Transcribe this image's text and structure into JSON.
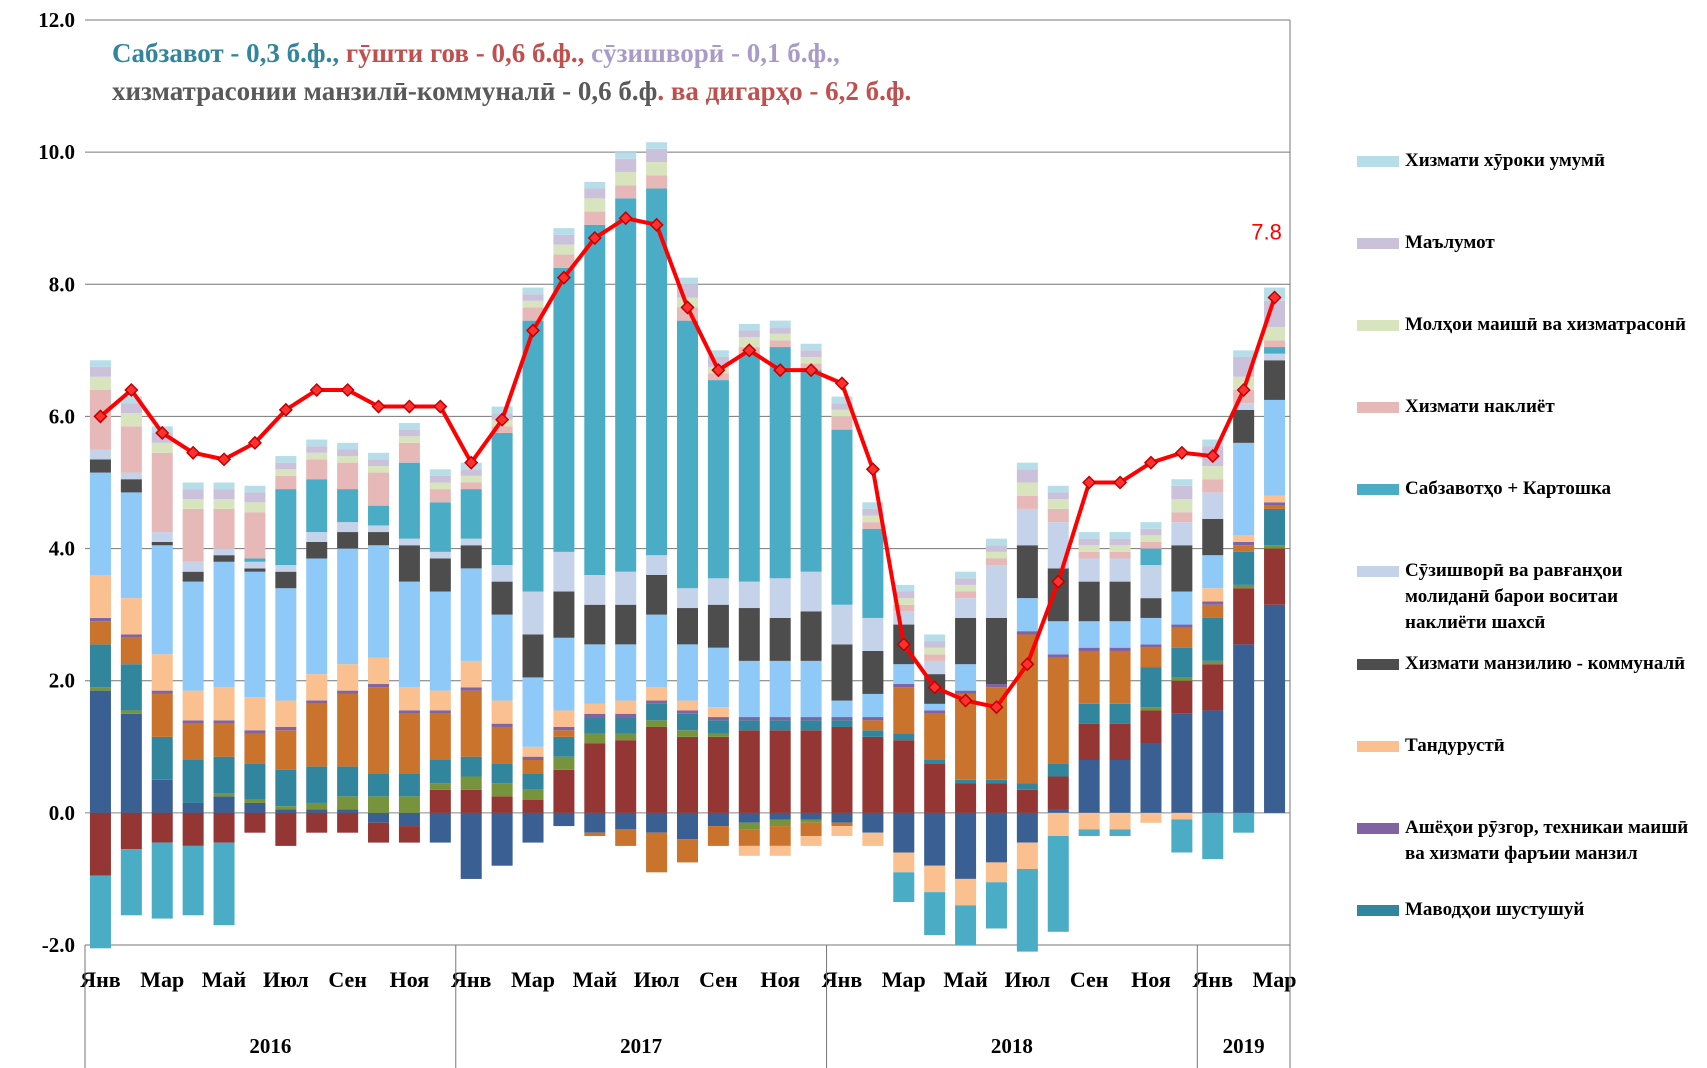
{
  "chart_data": {
    "type": "bar",
    "annotation": [
      {
        "text": "Сабзавот - 0,3 б.ф.,",
        "color": "#31859c"
      },
      {
        "text": " гӯшти гов - 0,6 б.ф.,",
        "color": "#c0504d"
      },
      {
        "text": " сӯзишворӣ - 0,1 б.ф.,",
        "color": "#a99bc8"
      },
      {
        "text": " хизматрасонии манзилӣ-коммуналӣ - 0,6 б.ф",
        "color": "#595959"
      },
      {
        "text": ". ва дигарҳо - 6,2 б.ф.",
        "color": "#c0504d"
      }
    ],
    "categories": [
      "Янв",
      null,
      "Мар",
      null,
      "Май",
      null,
      "Июл",
      null,
      "Сен",
      null,
      "Ноя",
      null,
      "Янв",
      null,
      "Мар",
      null,
      "Май",
      null,
      "Июл",
      null,
      "Сен",
      null,
      "Ноя",
      null,
      "Янв",
      null,
      "Мар",
      null,
      "Май",
      null,
      "Июл",
      null,
      "Сен",
      null,
      "Ноя",
      null,
      "Янв",
      null,
      "Мар"
    ],
    "year_groups": [
      {
        "label": "2016",
        "start": 0,
        "end": 11
      },
      {
        "label": "2017",
        "start": 12,
        "end": 23
      },
      {
        "label": "2018",
        "start": 24,
        "end": 35
      },
      {
        "label": "2019",
        "start": 36,
        "end": 38
      }
    ],
    "ylim": [
      -2,
      12
    ],
    "yticks": [
      {
        "value": -2,
        "label": "-2.0"
      },
      {
        "value": 0,
        "label": "0.0"
      },
      {
        "value": 2,
        "label": "2.0"
      },
      {
        "value": 4,
        "label": "4.0"
      },
      {
        "value": 6,
        "label": "6.0"
      },
      {
        "value": 8,
        "label": "8.0"
      },
      {
        "value": 10,
        "label": "10.0"
      },
      {
        "value": 12,
        "label": "12.0"
      }
    ],
    "grid": true,
    "series": [
      {
        "color": "#3a5f93",
        "values": [
          1.85,
          1.5,
          0.5,
          0.15,
          0.25,
          0.15,
          0.05,
          0.05,
          0.05,
          -0.15,
          -0.2,
          -0.45,
          -1.0,
          -0.8,
          -0.45,
          -0.2,
          -0.3,
          -0.25,
          -0.3,
          -0.4,
          -0.2,
          -0.15,
          -0.1,
          -0.1,
          -0.15,
          -0.3,
          -0.6,
          -0.8,
          -1.0,
          -0.75,
          -0.45,
          0.05,
          0.8,
          0.8,
          1.05,
          1.5,
          1.55,
          2.55,
          3.15
        ]
      },
      {
        "color": "#943634",
        "values": [
          -0.95,
          -0.55,
          -0.45,
          -0.5,
          -0.45,
          -0.3,
          -0.5,
          -0.3,
          -0.3,
          -0.3,
          -0.25,
          0.35,
          0.35,
          0.25,
          0.2,
          0.65,
          1.05,
          1.1,
          1.3,
          1.15,
          1.15,
          1.25,
          1.25,
          1.25,
          1.3,
          1.15,
          1.1,
          0.75,
          0.45,
          0.45,
          0.35,
          0.5,
          0.55,
          0.55,
          0.5,
          0.5,
          0.7,
          0.85,
          0.85
        ]
      },
      {
        "color": "#77933c",
        "values": [
          0.05,
          0.05,
          0,
          0,
          0.05,
          0.05,
          0.05,
          0.1,
          0.2,
          0.25,
          0.25,
          0.1,
          0.2,
          0.2,
          0.15,
          0.2,
          0.15,
          0.1,
          0.1,
          0.1,
          0.05,
          -0.1,
          -0.1,
          -0.05,
          0,
          0,
          0,
          0,
          0,
          0,
          0,
          0,
          0,
          0,
          0.05,
          0.05,
          0.05,
          0.05,
          0.05
        ]
      },
      {
        "color": "#31859c",
        "values": [
          0.65,
          0.7,
          0.65,
          0.65,
          0.55,
          0.55,
          0.55,
          0.55,
          0.45,
          0.35,
          0.35,
          0.35,
          0.3,
          0.3,
          0.25,
          0.3,
          0.25,
          0.25,
          0.25,
          0.25,
          0.2,
          0.15,
          0.15,
          0.15,
          0.1,
          0.1,
          0.1,
          0.05,
          0.05,
          0.05,
          0.1,
          0.2,
          0.3,
          0.3,
          0.6,
          0.45,
          0.65,
          0.5,
          0.55
        ],
        "name": "Маводҳои шустушуй"
      },
      {
        "color": "#c9732c",
        "values": [
          0.35,
          0.4,
          0.65,
          0.55,
          0.5,
          0.45,
          0.6,
          0.95,
          1.1,
          1.3,
          0.9,
          0.7,
          1.0,
          0.55,
          0.2,
          0.1,
          -0.05,
          -0.25,
          -0.6,
          -0.35,
          -0.3,
          -0.25,
          -0.3,
          -0.2,
          -0.05,
          0.15,
          0.7,
          0.7,
          1.3,
          1.4,
          2.25,
          1.6,
          0.8,
          0.8,
          0.3,
          0.3,
          0.2,
          0.1,
          0.05
        ]
      },
      {
        "color": "#8064a2",
        "values": [
          0.05,
          0.05,
          0.05,
          0.05,
          0.05,
          0.05,
          0.05,
          0.05,
          0.05,
          0.05,
          0.05,
          0.05,
          0.05,
          0.05,
          0.05,
          0.05,
          0.05,
          0.05,
          0.05,
          0.05,
          0.05,
          0.05,
          0.05,
          0.05,
          0.05,
          0.05,
          0.05,
          0.05,
          0.05,
          0.05,
          0.05,
          0.05,
          0.05,
          0.05,
          0.05,
          0.05,
          0.05,
          0.05,
          0.05
        ],
        "name": "Ашёҳои рӯзгор, техникаи маишӣ ва  хизмати фаръии манзил"
      },
      {
        "color": "#fac090",
        "values": [
          0.65,
          0.55,
          0.55,
          0.45,
          0.5,
          0.5,
          0.4,
          0.4,
          0.4,
          0.4,
          0.35,
          0.3,
          0.4,
          0.35,
          0.15,
          0.25,
          0.15,
          0.2,
          0.2,
          0.15,
          0.15,
          -0.15,
          -0.15,
          -0.15,
          -0.15,
          -0.2,
          -0.3,
          -0.4,
          -0.4,
          -0.3,
          -0.4,
          -0.35,
          -0.25,
          -0.25,
          -0.15,
          -0.1,
          0.2,
          0.1,
          0.1
        ],
        "name": "Тандурустӣ"
      },
      {
        "color": "#8ec9f7",
        "values": [
          1.55,
          1.6,
          1.65,
          1.65,
          1.9,
          1.9,
          1.7,
          1.75,
          1.75,
          1.7,
          1.6,
          1.5,
          1.4,
          1.3,
          1.05,
          1.1,
          0.9,
          0.85,
          1.1,
          0.85,
          0.9,
          0.85,
          0.85,
          0.85,
          0.25,
          0.35,
          0.3,
          0.1,
          0.4,
          0,
          0.5,
          0.5,
          0.4,
          0.4,
          0.4,
          0.5,
          0.5,
          1.4,
          1.45
        ]
      },
      {
        "color": "#4d4d4d",
        "values": [
          0.2,
          0.2,
          0.05,
          0.15,
          0.1,
          0.05,
          0.25,
          0.25,
          0.25,
          0.2,
          0.55,
          0.5,
          0.35,
          0.5,
          0.65,
          0.7,
          0.6,
          0.6,
          0.6,
          0.55,
          0.65,
          0.8,
          0.65,
          0.75,
          0.85,
          0.65,
          0.6,
          0.45,
          0.7,
          1.0,
          0.8,
          0.8,
          0.6,
          0.6,
          0.3,
          0.7,
          0.55,
          0.5,
          0.6
        ],
        "name": "Хизмати  манзилию - коммуналӣ"
      },
      {
        "color": "#c5d3ea",
        "values": [
          0.15,
          0.1,
          0.15,
          0.15,
          0.1,
          0.1,
          0.1,
          0.15,
          0.15,
          0.1,
          0.1,
          0.1,
          0.1,
          0.25,
          0.65,
          0.6,
          0.45,
          0.5,
          0.3,
          0.3,
          0.4,
          0.4,
          0.6,
          0.6,
          0.6,
          0.5,
          0.2,
          0.2,
          0.3,
          0.8,
          0.55,
          0.7,
          0.35,
          0.35,
          0.5,
          0.35,
          0.4,
          0.1,
          0.1
        ],
        "name": "Сӯзишворӣ ва равғанҳои молиданӣ барои воситаи наклиёти шахсӣ"
      },
      {
        "color": "#4bacc6",
        "values": [
          -1.1,
          -1.0,
          -1.15,
          -1.05,
          -1.25,
          0.05,
          1.15,
          0.8,
          0.5,
          0.3,
          1.15,
          0.75,
          0.75,
          2.0,
          4.1,
          4.3,
          5.3,
          5.65,
          5.55,
          4.05,
          3.0,
          3.45,
          3.5,
          3.05,
          2.65,
          1.35,
          -0.45,
          -0.65,
          -0.6,
          -0.7,
          -1.25,
          -1.45,
          -0.1,
          -0.1,
          0.25,
          -0.5,
          -0.7,
          -0.3,
          0.1
        ],
        "name": "Сабзавотҳо + Картошка"
      },
      {
        "color": "#e6b9b8",
        "values": [
          0.9,
          0.7,
          1.2,
          0.8,
          0.6,
          0.7,
          0.2,
          0.3,
          0.4,
          0.5,
          0.3,
          0.2,
          0.1,
          0.1,
          0.2,
          0.2,
          0.2,
          0.2,
          0.2,
          0.2,
          0.1,
          0.1,
          0.1,
          0.1,
          0.2,
          0.1,
          0.1,
          0.1,
          0.1,
          0.1,
          0.2,
          0.2,
          0.1,
          0.1,
          0.1,
          0.15,
          0.2,
          0.2,
          0.1
        ],
        "name": "Хизмати наклиёт"
      },
      {
        "color": "#d7e4bd",
        "values": [
          0.2,
          0.2,
          0.15,
          0.15,
          0.15,
          0.15,
          0.1,
          0.1,
          0.1,
          0.1,
          0.1,
          0.1,
          0.1,
          0.1,
          0.1,
          0.15,
          0.2,
          0.2,
          0.2,
          0.15,
          0.1,
          0.15,
          0.1,
          0.1,
          0.1,
          0.1,
          0.1,
          0.1,
          0.1,
          0.1,
          0.2,
          0.15,
          0.1,
          0.1,
          0.1,
          0.2,
          0.2,
          0.2,
          0.2
        ],
        "name": "Молҳои маишӣ ва хизматрасонӣ"
      },
      {
        "color": "#ccc1da",
        "values": [
          0.15,
          0.15,
          0.15,
          0.15,
          0.15,
          0.15,
          0.1,
          0.1,
          0.1,
          0.1,
          0.1,
          0.1,
          0.1,
          0.1,
          0.1,
          0.15,
          0.15,
          0.2,
          0.2,
          0.2,
          0.15,
          0.1,
          0.1,
          0.1,
          0.1,
          0.1,
          0.1,
          0.1,
          0.1,
          0.1,
          0.2,
          0.1,
          0.1,
          0.1,
          0.1,
          0.2,
          0.3,
          0.3,
          0.4
        ],
        "name": "Маълумот"
      },
      {
        "color": "#b7dee8",
        "values": [
          0.1,
          0.1,
          0.1,
          0.1,
          0.1,
          0.1,
          0.1,
          0.1,
          0.1,
          0.1,
          0.1,
          0.1,
          0.1,
          0.1,
          0.1,
          0.1,
          0.1,
          0.1,
          0.1,
          0.1,
          0.1,
          0.1,
          0.1,
          0.1,
          0.1,
          0.1,
          0.1,
          0.1,
          0.1,
          0.1,
          0.1,
          0.1,
          0.1,
          0.1,
          0.1,
          0.1,
          0.1,
          0.1,
          0.2
        ],
        "name": "Хизмати хӯроки умумӣ"
      },
      {
        "kind": "line",
        "color": "#ff0000",
        "values": [
          6.0,
          6.4,
          5.75,
          5.45,
          5.35,
          5.6,
          6.1,
          6.4,
          6.4,
          6.15,
          6.15,
          6.15,
          5.3,
          5.95,
          7.3,
          8.1,
          8.7,
          9.0,
          8.9,
          7.65,
          6.7,
          7.0,
          6.7,
          6.7,
          6.5,
          5.2,
          2.55,
          1.9,
          1.7,
          1.6,
          2.25,
          3.5,
          5.0,
          5.0,
          5.3,
          5.45,
          5.4,
          6.4,
          7.8
        ],
        "value_labels": [
          null,
          null,
          null,
          null,
          null,
          null,
          null,
          null,
          null,
          null,
          null,
          null,
          null,
          null,
          null,
          null,
          null,
          null,
          null,
          null,
          null,
          null,
          null,
          null,
          null,
          null,
          null,
          null,
          null,
          null,
          null,
          null,
          null,
          null,
          null,
          null,
          null,
          null,
          "7.8"
        ]
      }
    ]
  }
}
